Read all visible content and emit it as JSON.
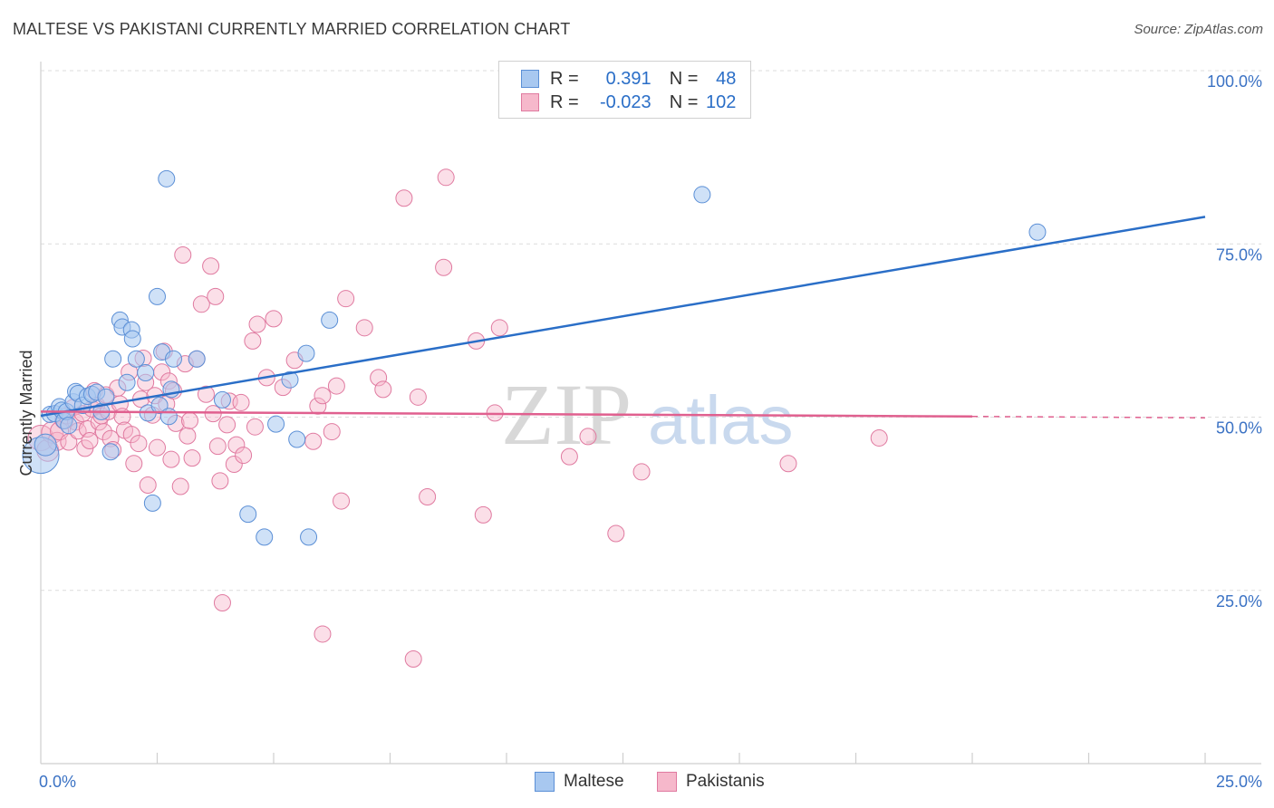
{
  "title": "MALTESE VS PAKISTANI CURRENTLY MARRIED CORRELATION CHART",
  "source": "Source: ZipAtlas.com",
  "watermark": {
    "zip": "ZIP",
    "atlas": "atlas"
  },
  "legend": {
    "rows": [
      {
        "r_label": "R =",
        "r_value": "0.391",
        "n_label": "N =",
        "n_value": "48"
      },
      {
        "r_label": "R =",
        "r_value": "-0.023",
        "n_label": "N =",
        "n_value": "102"
      }
    ]
  },
  "bottom_legend": {
    "maltese": "Maltese",
    "pakistanis": "Pakistanis"
  },
  "colors": {
    "maltese_fill": "#a8c8f0",
    "maltese_stroke": "#5b8fd6",
    "maltese_line": "#2a6ec7",
    "pakistani_fill": "#f6b8cb",
    "pakistani_stroke": "#e07aa0",
    "pakistani_line": "#e0608f",
    "axis_label": "#3b72c4",
    "grid": "#dcdcdc"
  },
  "chart_data": {
    "type": "scatter",
    "title": "MALTESE VS PAKISTANI CURRENTLY MARRIED CORRELATION CHART",
    "xlabel": "",
    "ylabel": "Currently Married",
    "xlim": [
      0,
      25
    ],
    "ylim": [
      0,
      100
    ],
    "x_tick_labels": [
      "0.0%",
      "25.0%"
    ],
    "y_ticks": [
      25,
      50,
      75,
      100
    ],
    "y_tick_labels": [
      "25.0%",
      "50.0%",
      "75.0%",
      "100.0%"
    ],
    "grid": true,
    "series": [
      {
        "name": "Maltese",
        "r": 0.391,
        "n": 48,
        "trend": {
          "x": [
            0,
            25
          ],
          "y": [
            50.2,
            78.9
          ]
        },
        "points": [
          [
            0.0,
            44.5,
            20
          ],
          [
            0.1,
            46.0,
            12
          ],
          [
            0.2,
            50.4,
            9
          ],
          [
            0.3,
            50.5,
            9
          ],
          [
            0.4,
            51.5,
            9
          ],
          [
            0.45,
            51.0,
            9
          ],
          [
            0.5,
            49.5,
            9
          ],
          [
            0.55,
            50.8,
            9
          ],
          [
            0.6,
            48.8,
            9
          ],
          [
            0.7,
            52.2,
            9
          ],
          [
            0.75,
            53.7,
            9
          ],
          [
            0.8,
            53.4,
            9
          ],
          [
            0.9,
            51.7,
            9
          ],
          [
            1.0,
            53.0,
            9
          ],
          [
            1.1,
            53.3,
            9
          ],
          [
            1.2,
            53.6,
            9
          ],
          [
            1.3,
            50.8,
            9
          ],
          [
            1.4,
            52.9,
            9
          ],
          [
            1.5,
            45.0,
            9
          ],
          [
            1.55,
            58.4,
            9
          ],
          [
            1.7,
            64.0,
            9
          ],
          [
            1.75,
            63.0,
            9
          ],
          [
            1.85,
            55.0,
            9
          ],
          [
            1.95,
            62.6,
            9
          ],
          [
            1.97,
            61.3,
            9
          ],
          [
            2.05,
            58.4,
            9
          ],
          [
            2.25,
            56.4,
            9
          ],
          [
            2.3,
            50.6,
            9
          ],
          [
            2.4,
            37.6,
            9
          ],
          [
            2.5,
            67.4,
            9
          ],
          [
            2.55,
            51.7,
            9
          ],
          [
            2.6,
            59.4,
            9
          ],
          [
            2.7,
            84.4,
            9
          ],
          [
            2.75,
            50.1,
            9
          ],
          [
            2.8,
            54.0,
            9
          ],
          [
            2.85,
            58.4,
            9
          ],
          [
            3.35,
            58.4,
            9
          ],
          [
            3.9,
            52.5,
            9
          ],
          [
            4.45,
            36.0,
            9
          ],
          [
            4.8,
            32.7,
            9
          ],
          [
            5.05,
            49.0,
            9
          ],
          [
            5.35,
            55.4,
            9
          ],
          [
            5.5,
            46.8,
            9
          ],
          [
            5.7,
            59.2,
            9
          ],
          [
            5.75,
            32.7,
            9
          ],
          [
            6.2,
            64.0,
            9
          ],
          [
            14.2,
            82.1,
            9
          ],
          [
            21.4,
            76.7,
            9
          ]
        ]
      },
      {
        "name": "Pakistanis",
        "r": -0.023,
        "n": 102,
        "trend": {
          "x": [
            0,
            20
          ],
          "y": [
            50.8,
            50.1
          ]
        },
        "trend_dashed": {
          "x": [
            20,
            25
          ],
          "y": [
            50.1,
            49.9
          ]
        },
        "points": [
          [
            0.0,
            47.0,
            14
          ],
          [
            0.15,
            45.2,
            12
          ],
          [
            0.25,
            47.8,
            12
          ],
          [
            0.35,
            46.5,
            10
          ],
          [
            0.4,
            48.0,
            10
          ],
          [
            0.5,
            49.6,
            10
          ],
          [
            0.55,
            50.2,
            9
          ],
          [
            0.6,
            46.4,
            9
          ],
          [
            0.7,
            51.4,
            9
          ],
          [
            0.75,
            49.3,
            9
          ],
          [
            0.8,
            48.0,
            9
          ],
          [
            0.9,
            50.5,
            9
          ],
          [
            0.95,
            45.5,
            9
          ],
          [
            1.0,
            48.3,
            9
          ],
          [
            1.05,
            46.6,
            9
          ],
          [
            1.1,
            51.2,
            9
          ],
          [
            1.15,
            53.8,
            9
          ],
          [
            1.2,
            51.7,
            9
          ],
          [
            1.25,
            49.3,
            9
          ],
          [
            1.3,
            50.2,
            9
          ],
          [
            1.35,
            47.9,
            9
          ],
          [
            1.4,
            53.2,
            9
          ],
          [
            1.45,
            50.8,
            9
          ],
          [
            1.5,
            46.9,
            9
          ],
          [
            1.55,
            45.3,
            9
          ],
          [
            1.65,
            54.2,
            9
          ],
          [
            1.7,
            51.9,
            9
          ],
          [
            1.75,
            50.1,
            9
          ],
          [
            1.8,
            48.1,
            9
          ],
          [
            1.9,
            56.5,
            9
          ],
          [
            1.95,
            47.5,
            9
          ],
          [
            2.0,
            43.3,
            9
          ],
          [
            2.1,
            46.2,
            9
          ],
          [
            2.15,
            52.6,
            9
          ],
          [
            2.2,
            58.5,
            9
          ],
          [
            2.25,
            55.0,
            9
          ],
          [
            2.3,
            40.2,
            9
          ],
          [
            2.4,
            50.3,
            9
          ],
          [
            2.45,
            53.1,
            9
          ],
          [
            2.5,
            45.6,
            9
          ],
          [
            2.6,
            56.5,
            9
          ],
          [
            2.65,
            59.5,
            9
          ],
          [
            2.7,
            51.9,
            9
          ],
          [
            2.75,
            55.2,
            9
          ],
          [
            2.8,
            43.9,
            9
          ],
          [
            2.85,
            53.8,
            9
          ],
          [
            2.9,
            49.1,
            9
          ],
          [
            3.0,
            40.0,
            9
          ],
          [
            3.05,
            73.4,
            9
          ],
          [
            3.1,
            57.7,
            9
          ],
          [
            3.15,
            47.3,
            9
          ],
          [
            3.2,
            49.5,
            9
          ],
          [
            3.25,
            44.1,
            9
          ],
          [
            3.35,
            58.4,
            9
          ],
          [
            3.45,
            66.3,
            9
          ],
          [
            3.55,
            53.3,
            9
          ],
          [
            3.65,
            71.8,
            9
          ],
          [
            3.7,
            50.5,
            9
          ],
          [
            3.75,
            67.4,
            9
          ],
          [
            3.8,
            45.8,
            9
          ],
          [
            3.85,
            40.8,
            9
          ],
          [
            3.9,
            23.2,
            9
          ],
          [
            4.0,
            48.9,
            9
          ],
          [
            4.05,
            52.3,
            9
          ],
          [
            4.15,
            43.2,
            9
          ],
          [
            4.2,
            46.0,
            9
          ],
          [
            4.3,
            52.1,
            9
          ],
          [
            4.35,
            44.5,
            9
          ],
          [
            4.55,
            61.0,
            9
          ],
          [
            4.6,
            48.6,
            9
          ],
          [
            4.65,
            63.4,
            9
          ],
          [
            4.85,
            55.7,
            9
          ],
          [
            5.0,
            64.2,
            9
          ],
          [
            5.2,
            54.3,
            9
          ],
          [
            5.45,
            58.2,
            9
          ],
          [
            5.85,
            46.5,
            9
          ],
          [
            5.95,
            51.6,
            9
          ],
          [
            6.05,
            53.1,
            9
          ],
          [
            6.05,
            18.7,
            9
          ],
          [
            6.25,
            47.9,
            9
          ],
          [
            6.35,
            54.5,
            9
          ],
          [
            6.45,
            37.9,
            9
          ],
          [
            6.55,
            67.1,
            9
          ],
          [
            6.95,
            62.9,
            9
          ],
          [
            7.25,
            55.7,
            9
          ],
          [
            7.35,
            54.0,
            9
          ],
          [
            7.8,
            81.6,
            9
          ],
          [
            8.0,
            15.1,
            9
          ],
          [
            8.1,
            52.9,
            9
          ],
          [
            8.3,
            38.5,
            9
          ],
          [
            8.65,
            71.6,
            9
          ],
          [
            8.7,
            84.6,
            9
          ],
          [
            9.35,
            61.0,
            9
          ],
          [
            9.5,
            35.9,
            9
          ],
          [
            9.75,
            50.6,
            9
          ],
          [
            9.85,
            62.9,
            9
          ],
          [
            11.35,
            44.3,
            9
          ],
          [
            11.75,
            47.2,
            9
          ],
          [
            12.35,
            33.2,
            9
          ],
          [
            12.9,
            42.1,
            9
          ],
          [
            16.05,
            43.3,
            9
          ],
          [
            18.0,
            47.0,
            9
          ]
        ]
      }
    ]
  }
}
